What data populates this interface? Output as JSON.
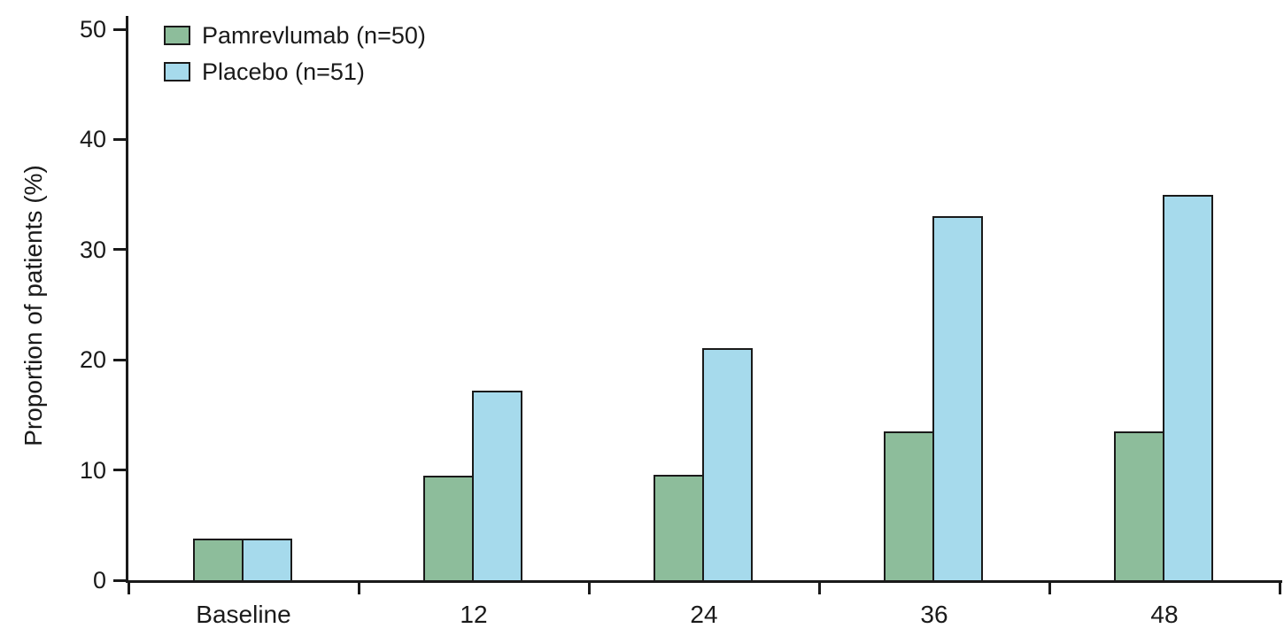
{
  "chart_data": {
    "type": "bar",
    "title": "",
    "xlabel": "",
    "ylabel": "Proportion of patients (%)",
    "ylim": [
      0,
      50
    ],
    "yticks": [
      0,
      10,
      20,
      30,
      40,
      50
    ],
    "grid": false,
    "legend_position": "top-left",
    "categories": [
      "Baseline",
      "12",
      "24",
      "36",
      "48"
    ],
    "series": [
      {
        "name": "Pamrevlumab (n=50)",
        "color": "#8dbd9b",
        "values": [
          3.8,
          9.5,
          9.6,
          13.5,
          13.5
        ]
      },
      {
        "name": "Placebo (n=51)",
        "color": "#a6daec",
        "values": [
          3.8,
          17.2,
          21.1,
          33.0,
          35.0
        ]
      }
    ],
    "axis_color": "#1a1a1a"
  }
}
